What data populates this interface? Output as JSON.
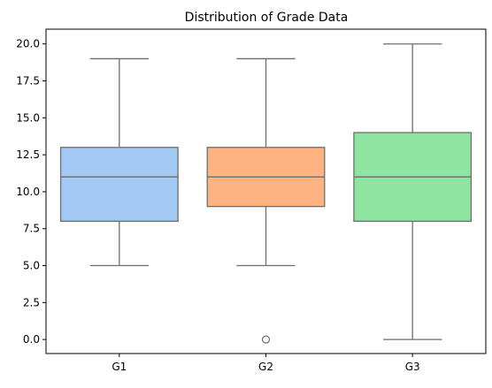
{
  "chart_data": {
    "type": "box",
    "title": "Distribution of Grade Data",
    "xlabel": "",
    "ylabel": "",
    "categories": [
      "G1",
      "G2",
      "G3"
    ],
    "ylim": [
      -0.95,
      21.0
    ],
    "yticks": [
      0.0,
      2.5,
      5.0,
      7.5,
      10.0,
      12.5,
      15.0,
      17.5,
      20.0
    ],
    "ytick_labels": [
      "0.0",
      "2.5",
      "5.0",
      "7.5",
      "10.0",
      "12.5",
      "15.0",
      "17.5",
      "20.0"
    ],
    "grid": false,
    "boxes": [
      {
        "category": "G1",
        "whisker_low": 5,
        "q1": 8,
        "median": 11,
        "q3": 13,
        "whisker_high": 19,
        "outliers": [],
        "color": "#a1c9f4"
      },
      {
        "category": "G2",
        "whisker_low": 5,
        "q1": 9,
        "median": 11,
        "q3": 13,
        "whisker_high": 19,
        "outliers": [
          0
        ],
        "color": "#ffb482"
      },
      {
        "category": "G3",
        "whisker_low": 0,
        "q1": 8,
        "median": 11,
        "q3": 14,
        "whisker_high": 20,
        "outliers": [],
        "color": "#8de5a1"
      }
    ],
    "line_color": "#6d6d6d"
  }
}
